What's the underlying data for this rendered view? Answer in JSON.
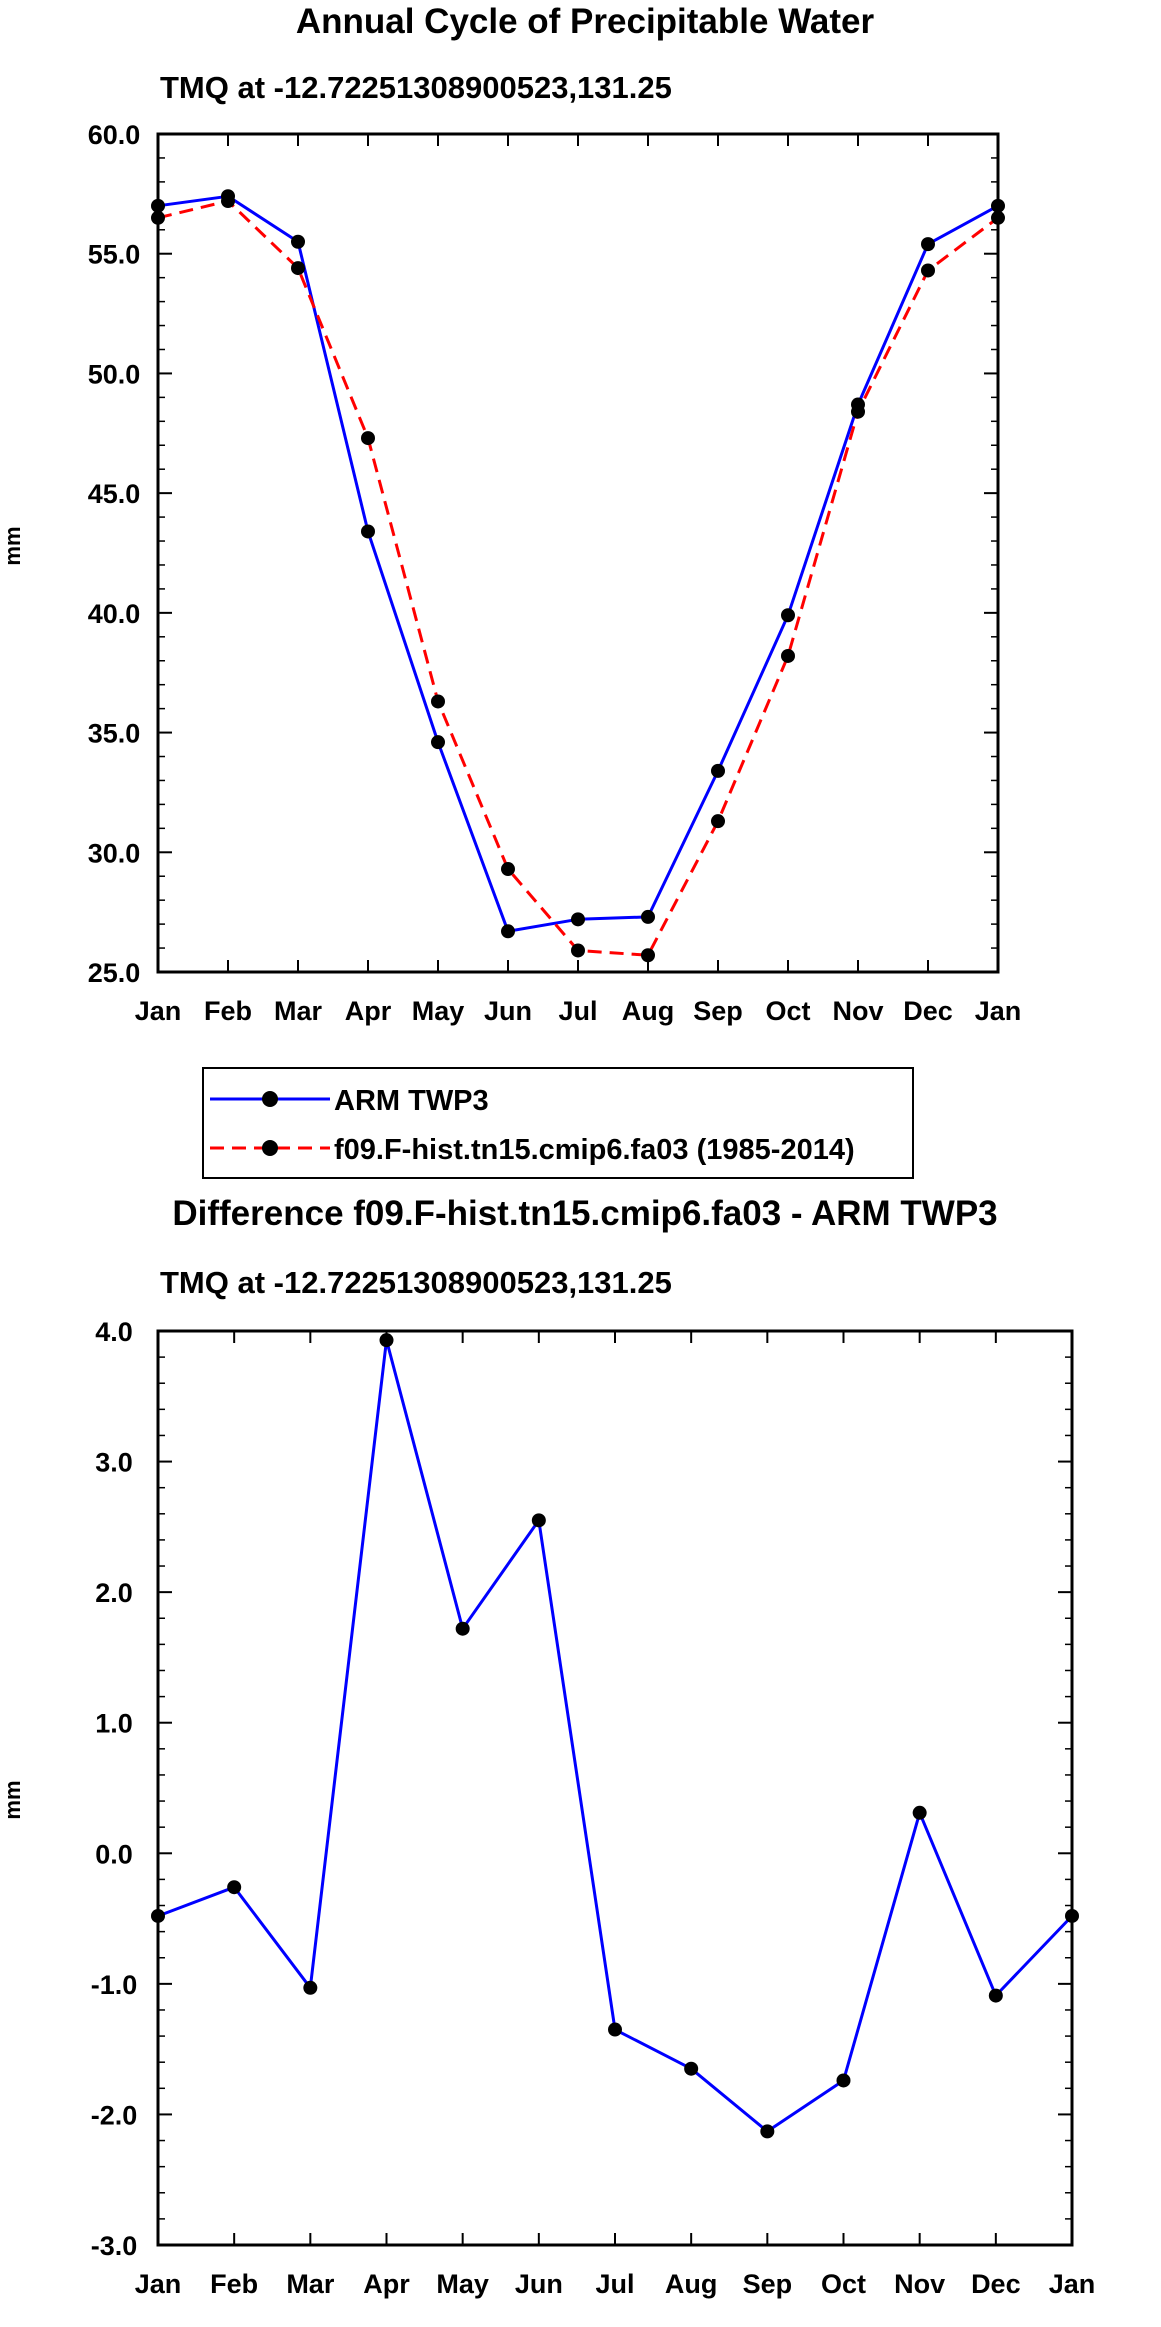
{
  "colors": {
    "obs": "#0000ff",
    "model": "#ff0000",
    "marker": "#000000",
    "axis": "#000000"
  },
  "chart_data": [
    {
      "type": "line",
      "title": "Annual Cycle of Precipitable Water",
      "subtitle": "TMQ at -12.72251308900523,131.25",
      "ylabel": "mm",
      "xlabel": "",
      "categories": [
        "Jan",
        "Feb",
        "Mar",
        "Apr",
        "May",
        "Jun",
        "Jul",
        "Aug",
        "Sep",
        "Oct",
        "Nov",
        "Dec",
        "Jan"
      ],
      "ylim": [
        25.0,
        60.0
      ],
      "yticks": [
        25.0,
        30.0,
        35.0,
        40.0,
        45.0,
        50.0,
        55.0,
        60.0
      ],
      "ytick_labels": [
        "25.0",
        "30.0",
        "35.0",
        "40.0",
        "45.0",
        "50.0",
        "55.0",
        "60.0"
      ],
      "grid": false,
      "legend_position": "bottom",
      "series": [
        {
          "name": "ARM TWP3",
          "style": "solid",
          "color_key": "obs",
          "values": [
            57.0,
            57.4,
            55.5,
            43.4,
            34.6,
            26.7,
            27.2,
            27.3,
            33.4,
            39.9,
            48.7,
            55.4,
            57.0
          ]
        },
        {
          "name": "f09.F-hist.tn15.cmip6.fa03 (1985-2014)",
          "style": "dashed",
          "color_key": "model",
          "values": [
            56.5,
            57.2,
            54.4,
            47.3,
            36.3,
            29.3,
            25.9,
            25.7,
            31.3,
            38.2,
            48.4,
            54.3,
            56.5
          ]
        }
      ]
    },
    {
      "type": "line",
      "title": "Difference f09.F-hist.tn15.cmip6.fa03 - ARM TWP3",
      "subtitle": "TMQ at -12.72251308900523,131.25",
      "ylabel": "mm",
      "xlabel": "",
      "categories": [
        "Jan",
        "Feb",
        "Mar",
        "Apr",
        "May",
        "Jun",
        "Jul",
        "Aug",
        "Sep",
        "Oct",
        "Nov",
        "Dec",
        "Jan"
      ],
      "ylim": [
        -3.0,
        4.0
      ],
      "yticks": [
        -3.0,
        -2.0,
        -1.0,
        0.0,
        1.0,
        2.0,
        3.0,
        4.0
      ],
      "ytick_labels": [
        "-3.0",
        "-2.0",
        "-1.0",
        "0.0",
        "1.0",
        "2.0",
        "3.0",
        "4.0"
      ],
      "grid": false,
      "series": [
        {
          "name": "Difference",
          "style": "solid",
          "color_key": "obs",
          "values": [
            -0.48,
            -0.26,
            -1.03,
            3.93,
            1.72,
            2.55,
            -1.35,
            -1.65,
            -2.13,
            -1.74,
            0.31,
            -1.09,
            -0.48
          ]
        }
      ]
    }
  ]
}
